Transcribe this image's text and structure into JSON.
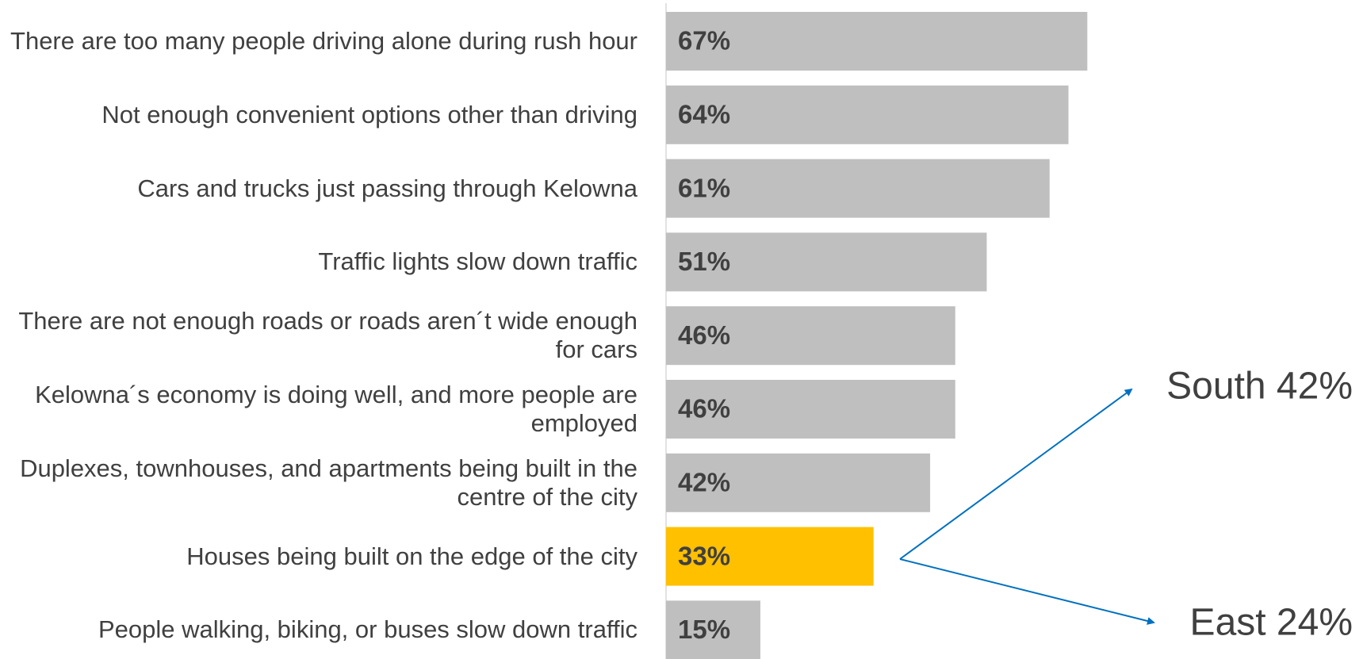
{
  "chart_data": {
    "type": "bar",
    "orientation": "horizontal",
    "categories": [
      "There are too many people driving alone during rush hour",
      "Not enough convenient options other than driving",
      "Cars and trucks just passing through Kelowna",
      "Traffic lights slow down traffic",
      "There are not enough roads or roads aren´t wide enough for cars",
      "Kelowna´s economy is doing well, and more people are employed",
      "Duplexes, townhouses, and apartments being built in the centre of the city",
      "Houses being built on the edge of the city",
      "People walking, biking, or buses slow down traffic"
    ],
    "values": [
      67,
      64,
      61,
      51,
      46,
      46,
      42,
      33,
      15
    ],
    "value_labels": [
      "67%",
      "64%",
      "61%",
      "51%",
      "46%",
      "46%",
      "42%",
      "33%",
      "15%"
    ],
    "colors": [
      "#bfbfbf",
      "#bfbfbf",
      "#bfbfbf",
      "#bfbfbf",
      "#bfbfbf",
      "#bfbfbf",
      "#bfbfbf",
      "#ffc000",
      "#bfbfbf"
    ],
    "xlim": [
      0,
      100
    ],
    "annotations": [
      "South 42%",
      "East 24%"
    ]
  }
}
